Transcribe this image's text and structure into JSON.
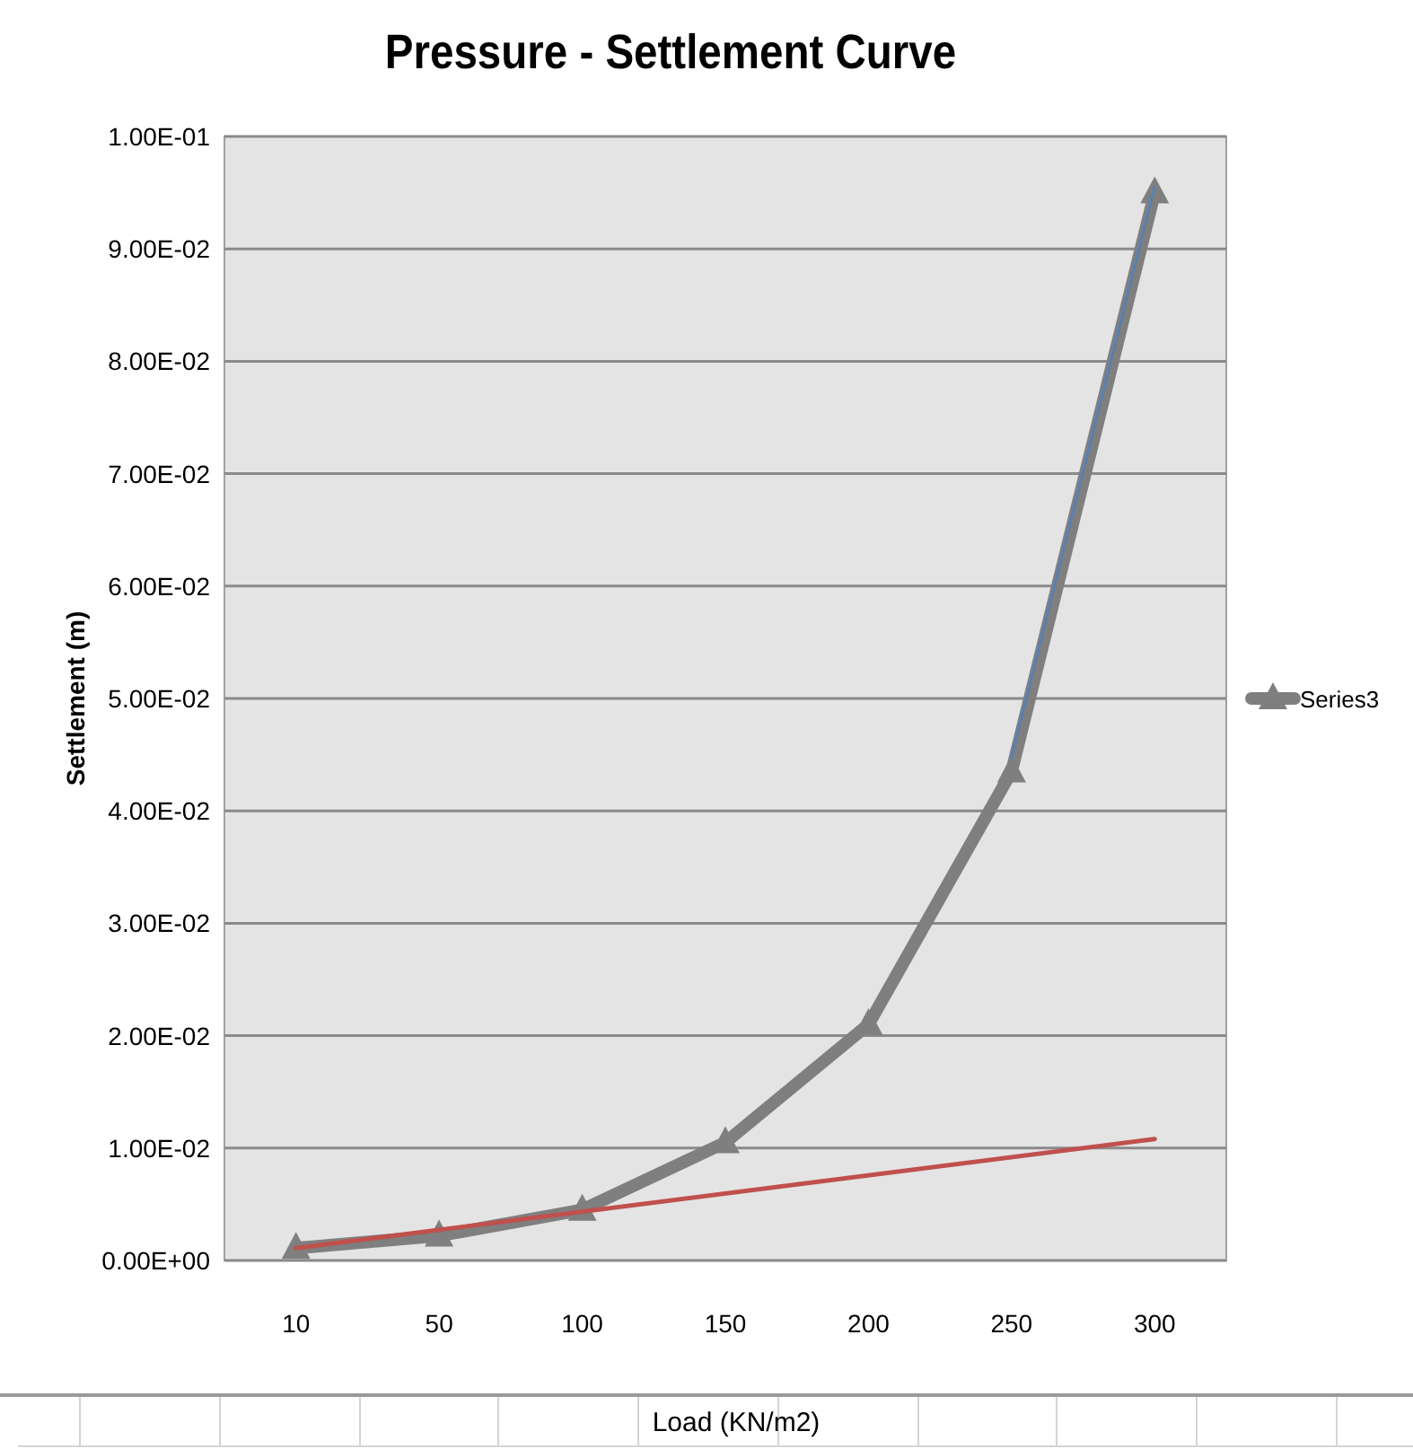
{
  "chart_data": {
    "type": "line",
    "title": "Pressure - Settlement Curve",
    "xlabel": "Load (KN/m2)",
    "ylabel": "Settlement (m)",
    "categories": [
      "10",
      "50",
      "100",
      "150",
      "200",
      "250",
      "300"
    ],
    "series": [
      {
        "name": "Series3",
        "color": "#7f7f7f",
        "values": [
          0.0011,
          0.0022,
          0.0045,
          0.0105,
          0.021,
          0.0435,
          0.095
        ],
        "marker": "triangle"
      },
      {
        "color": "#c0504d",
        "x": [
          "10",
          "300"
        ],
        "values": [
          0.0011,
          0.0108
        ],
        "marker": "none"
      },
      {
        "color": "#4f81bd",
        "x": [
          "250",
          "300"
        ],
        "values": [
          0.0447,
          0.0955
        ],
        "marker": "none"
      }
    ],
    "ylim": [
      0,
      0.1
    ],
    "yticks": [
      {
        "value": 0,
        "label": "0.00E+00"
      },
      {
        "value": 0.01,
        "label": "1.00E-02"
      },
      {
        "value": 0.02,
        "label": "2.00E-02"
      },
      {
        "value": 0.03,
        "label": "3.00E-02"
      },
      {
        "value": 0.04,
        "label": "4.00E-02"
      },
      {
        "value": 0.05,
        "label": "5.00E-02"
      },
      {
        "value": 0.06,
        "label": "6.00E-02"
      },
      {
        "value": 0.07,
        "label": "7.00E-02"
      },
      {
        "value": 0.08,
        "label": "8.00E-02"
      },
      {
        "value": 0.09,
        "label": "9.00E-02"
      },
      {
        "value": 0.1,
        "label": "1.00E-01"
      }
    ],
    "grid": "y",
    "legend": "right"
  }
}
